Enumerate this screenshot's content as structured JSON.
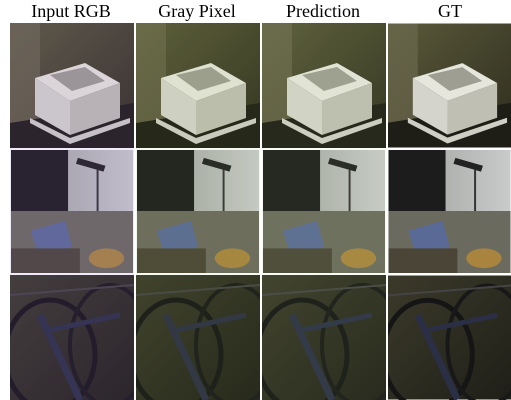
{
  "columns": [
    "Input RGB",
    "Gray Pixel",
    "Prediction",
    "GT"
  ]
}
